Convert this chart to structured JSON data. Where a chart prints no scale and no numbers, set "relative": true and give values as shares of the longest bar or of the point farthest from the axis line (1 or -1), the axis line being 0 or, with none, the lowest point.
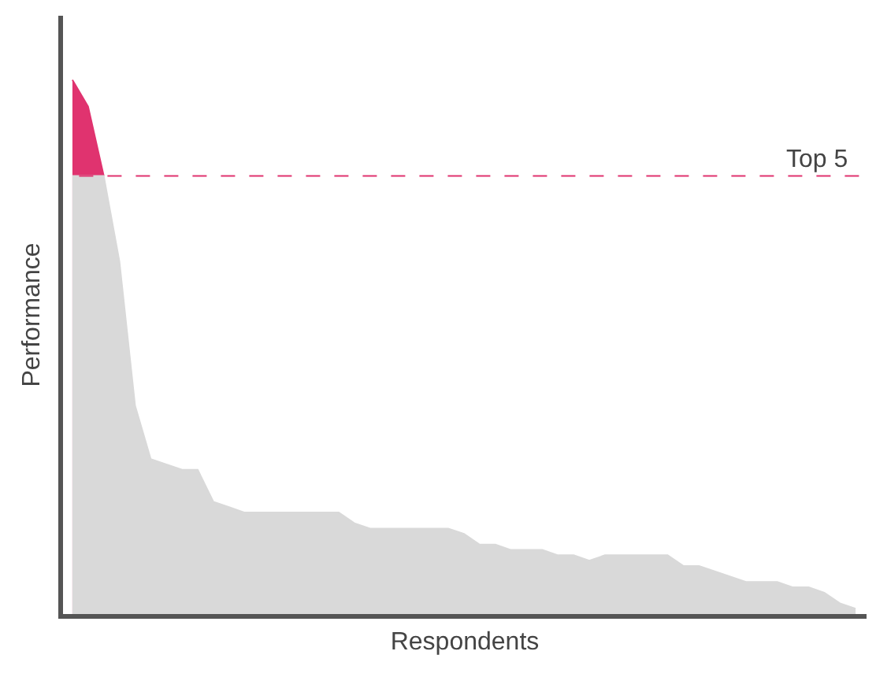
{
  "chart_data": {
    "type": "area",
    "relative": true,
    "xlabel": "Respondents",
    "ylabel": "Performance",
    "categories": [
      null,
      null,
      null,
      null,
      null,
      null,
      null,
      null,
      null,
      null,
      null,
      null,
      null,
      null,
      null,
      null,
      null,
      null,
      null,
      null,
      null,
      null,
      null,
      null,
      null,
      null,
      null,
      null,
      null,
      null,
      null,
      null,
      null,
      null,
      null,
      null,
      null,
      null,
      null,
      null,
      null,
      null,
      null,
      null,
      null,
      null,
      null,
      null,
      null,
      null,
      null
    ],
    "series": [
      {
        "color": "#d9d9d9",
        "values": [
          0.82,
          0.82,
          0.82,
          0.66,
          0.39,
          0.29,
          0.28,
          0.27,
          0.27,
          0.21,
          0.2,
          0.19,
          0.19,
          0.19,
          0.19,
          0.19,
          0.19,
          0.19,
          0.17,
          0.16,
          0.16,
          0.16,
          0.16,
          0.16,
          0.16,
          0.15,
          0.13,
          0.13,
          0.12,
          0.12,
          0.12,
          0.11,
          0.11,
          0.1,
          0.11,
          0.11,
          0.11,
          0.11,
          0.11,
          0.09,
          0.09,
          0.08,
          0.07,
          0.06,
          0.06,
          0.06,
          0.05,
          0.05,
          0.04,
          0.02,
          0.01
        ]
      },
      {
        "color": "#e0336f",
        "values": [
          1.0,
          0.95,
          0.82,
          null,
          null,
          null,
          null,
          null,
          null,
          null,
          null,
          null,
          null,
          null,
          null,
          null,
          null,
          null,
          null,
          null,
          null,
          null,
          null,
          null,
          null,
          null,
          null,
          null,
          null,
          null,
          null,
          null,
          null,
          null,
          null,
          null,
          null,
          null,
          null,
          null,
          null,
          null,
          null,
          null,
          null,
          null,
          null,
          null,
          null,
          null,
          null
        ]
      }
    ],
    "ref_lines": [
      {
        "axis": "y",
        "value": 0.82,
        "label": "Top 5",
        "color": "#e0336f",
        "line_style": "dashed"
      }
    ]
  }
}
